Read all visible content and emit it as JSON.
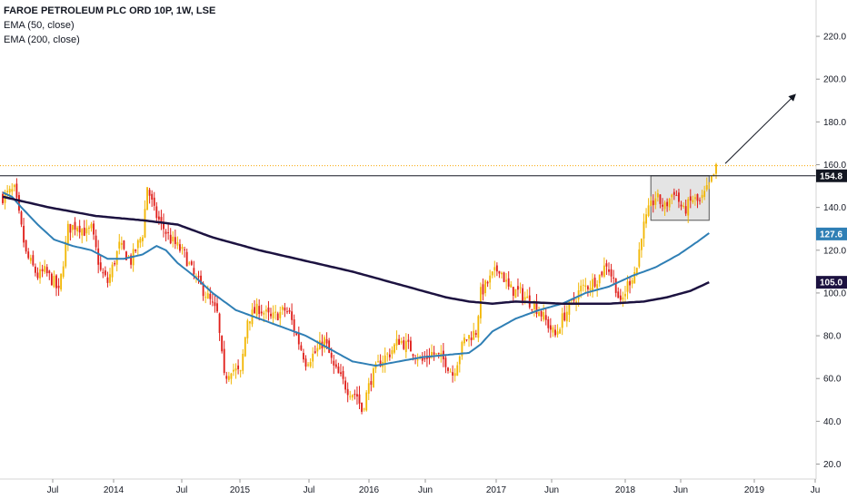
{
  "legend": {
    "title": "FAROE PETROLEUM PLC ORD 10P, 1W, LSE",
    "ema50_label": "EMA (50, close)",
    "ema200_label": "EMA (200, close)"
  },
  "colors": {
    "up": "#f2b705",
    "down": "#e0201b",
    "ema50": "#2f7fb5",
    "ema200": "#1c1240",
    "resistance": "#131722",
    "dotted": "#f7a600",
    "box_fill": "#d9d9d9"
  },
  "chart_data": {
    "type": "candlestick",
    "y_axis": {
      "ticks": [
        "20.0",
        "40.0",
        "60.0",
        "80.0",
        "100.0",
        "120.0",
        "140.0",
        "160.0",
        "180.0",
        "200.0",
        "220.0"
      ],
      "ylim": [
        13,
        237
      ]
    },
    "x_axis": {
      "ticks": [
        "Jul",
        "2014",
        "Jul",
        "2015",
        "Jul",
        "2016",
        "Jun",
        "2017",
        "Jun",
        "2018",
        "Jun",
        "2019",
        "Ju"
      ]
    },
    "price_tags": [
      {
        "label": "154.8",
        "value": 154.8,
        "bg": "#131722"
      },
      {
        "label": "127.6",
        "value": 127.6,
        "bg": "#2f7fb5"
      },
      {
        "label": "105.0",
        "value": 105.0,
        "bg": "#1c1240"
      }
    ],
    "resistance_level": 154.8,
    "last_price_level": 159.5,
    "consolidation_box": {
      "start_week": 278,
      "end_week": 303,
      "low": 134,
      "high": 154.8
    },
    "arrow": {
      "from_week": 306,
      "from": 158,
      "to_week": 321,
      "to": 190
    },
    "close_keypoints": [
      [
        0,
        145
      ],
      [
        5,
        148
      ],
      [
        10,
        118
      ],
      [
        15,
        108
      ],
      [
        18,
        110
      ],
      [
        22,
        105
      ],
      [
        24,
        100
      ],
      [
        28,
        130
      ],
      [
        32,
        132
      ],
      [
        36,
        128
      ],
      [
        38,
        130
      ],
      [
        42,
        110
      ],
      [
        45,
        105
      ],
      [
        50,
        122
      ],
      [
        55,
        115
      ],
      [
        60,
        128
      ],
      [
        62,
        150
      ],
      [
        65,
        138
      ],
      [
        68,
        132
      ],
      [
        72,
        125
      ],
      [
        78,
        118
      ],
      [
        82,
        108
      ],
      [
        88,
        98
      ],
      [
        92,
        90
      ],
      [
        95,
        60
      ],
      [
        98,
        65
      ],
      [
        102,
        62
      ],
      [
        105,
        88
      ],
      [
        110,
        93
      ],
      [
        115,
        88
      ],
      [
        118,
        90
      ],
      [
        121,
        92
      ],
      [
        123,
        90
      ],
      [
        126,
        80
      ],
      [
        130,
        68
      ],
      [
        134,
        72
      ],
      [
        138,
        78
      ],
      [
        142,
        65
      ],
      [
        148,
        55
      ],
      [
        152,
        52
      ],
      [
        154,
        45
      ],
      [
        158,
        60
      ],
      [
        162,
        68
      ],
      [
        166,
        72
      ],
      [
        170,
        78
      ],
      [
        175,
        74
      ],
      [
        180,
        68
      ],
      [
        184,
        72
      ],
      [
        190,
        68
      ],
      [
        193,
        62
      ],
      [
        198,
        78
      ],
      [
        203,
        82
      ],
      [
        205,
        100
      ],
      [
        210,
        108
      ],
      [
        213,
        112
      ],
      [
        217,
        102
      ],
      [
        222,
        100
      ],
      [
        226,
        96
      ],
      [
        230,
        92
      ],
      [
        234,
        85
      ],
      [
        237,
        80
      ],
      [
        240,
        88
      ],
      [
        244,
        95
      ],
      [
        248,
        102
      ],
      [
        252,
        104
      ],
      [
        256,
        108
      ],
      [
        259,
        114
      ],
      [
        263,
        103
      ],
      [
        265,
        94
      ],
      [
        268,
        104
      ],
      [
        272,
        112
      ],
      [
        274,
        128
      ],
      [
        277,
        138
      ],
      [
        280,
        145
      ],
      [
        284,
        140
      ],
      [
        288,
        148
      ],
      [
        292,
        138
      ],
      [
        296,
        144
      ],
      [
        299,
        142
      ],
      [
        303,
        150
      ],
      [
        306,
        158
      ]
    ],
    "ema50_keypoints": [
      [
        0,
        147
      ],
      [
        4,
        145
      ],
      [
        8,
        140
      ],
      [
        15,
        132
      ],
      [
        22,
        125
      ],
      [
        30,
        122
      ],
      [
        38,
        120
      ],
      [
        45,
        116
      ],
      [
        52,
        116
      ],
      [
        60,
        118
      ],
      [
        66,
        122
      ],
      [
        70,
        120
      ],
      [
        75,
        114
      ],
      [
        82,
        108
      ],
      [
        90,
        100
      ],
      [
        100,
        92
      ],
      [
        110,
        88
      ],
      [
        120,
        84
      ],
      [
        130,
        80
      ],
      [
        140,
        74
      ],
      [
        150,
        68
      ],
      [
        160,
        66
      ],
      [
        170,
        68
      ],
      [
        180,
        70
      ],
      [
        190,
        71
      ],
      [
        200,
        72
      ],
      [
        205,
        76
      ],
      [
        210,
        82
      ],
      [
        220,
        88
      ],
      [
        230,
        92
      ],
      [
        240,
        95
      ],
      [
        250,
        100
      ],
      [
        260,
        103
      ],
      [
        270,
        108
      ],
      [
        280,
        112
      ],
      [
        290,
        118
      ],
      [
        298,
        124
      ],
      [
        303,
        128
      ]
    ],
    "ema200_keypoints": [
      [
        0,
        145
      ],
      [
        20,
        140
      ],
      [
        40,
        136
      ],
      [
        60,
        134
      ],
      [
        75,
        132
      ],
      [
        90,
        126
      ],
      [
        110,
        120
      ],
      [
        130,
        115
      ],
      [
        150,
        110
      ],
      [
        170,
        104
      ],
      [
        190,
        98
      ],
      [
        200,
        96
      ],
      [
        210,
        95
      ],
      [
        220,
        96
      ],
      [
        240,
        95
      ],
      [
        260,
        95
      ],
      [
        275,
        96
      ],
      [
        285,
        98
      ],
      [
        295,
        101
      ],
      [
        303,
        105
      ]
    ]
  }
}
